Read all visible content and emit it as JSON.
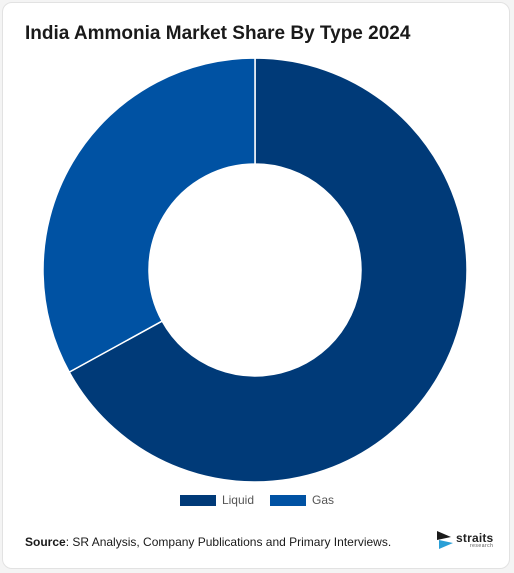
{
  "chart_data": {
    "type": "pie",
    "variant": "donut",
    "title": "India Ammonia Market Share By Type 2024",
    "categories": [
      "Liquid",
      "Gas"
    ],
    "values": [
      67,
      33
    ],
    "unit": "%",
    "colors": [
      "#003a78",
      "#0052a3"
    ],
    "legend": {
      "position": "bottom",
      "labels": [
        "Liquid",
        "Gas"
      ]
    }
  },
  "footer": {
    "source_label": "Source",
    "source_text": "SR Analysis, Company Publications and Primary Interviews."
  },
  "logo": {
    "name": "straits",
    "sub": "research",
    "icon": "straits-logo-icon"
  }
}
